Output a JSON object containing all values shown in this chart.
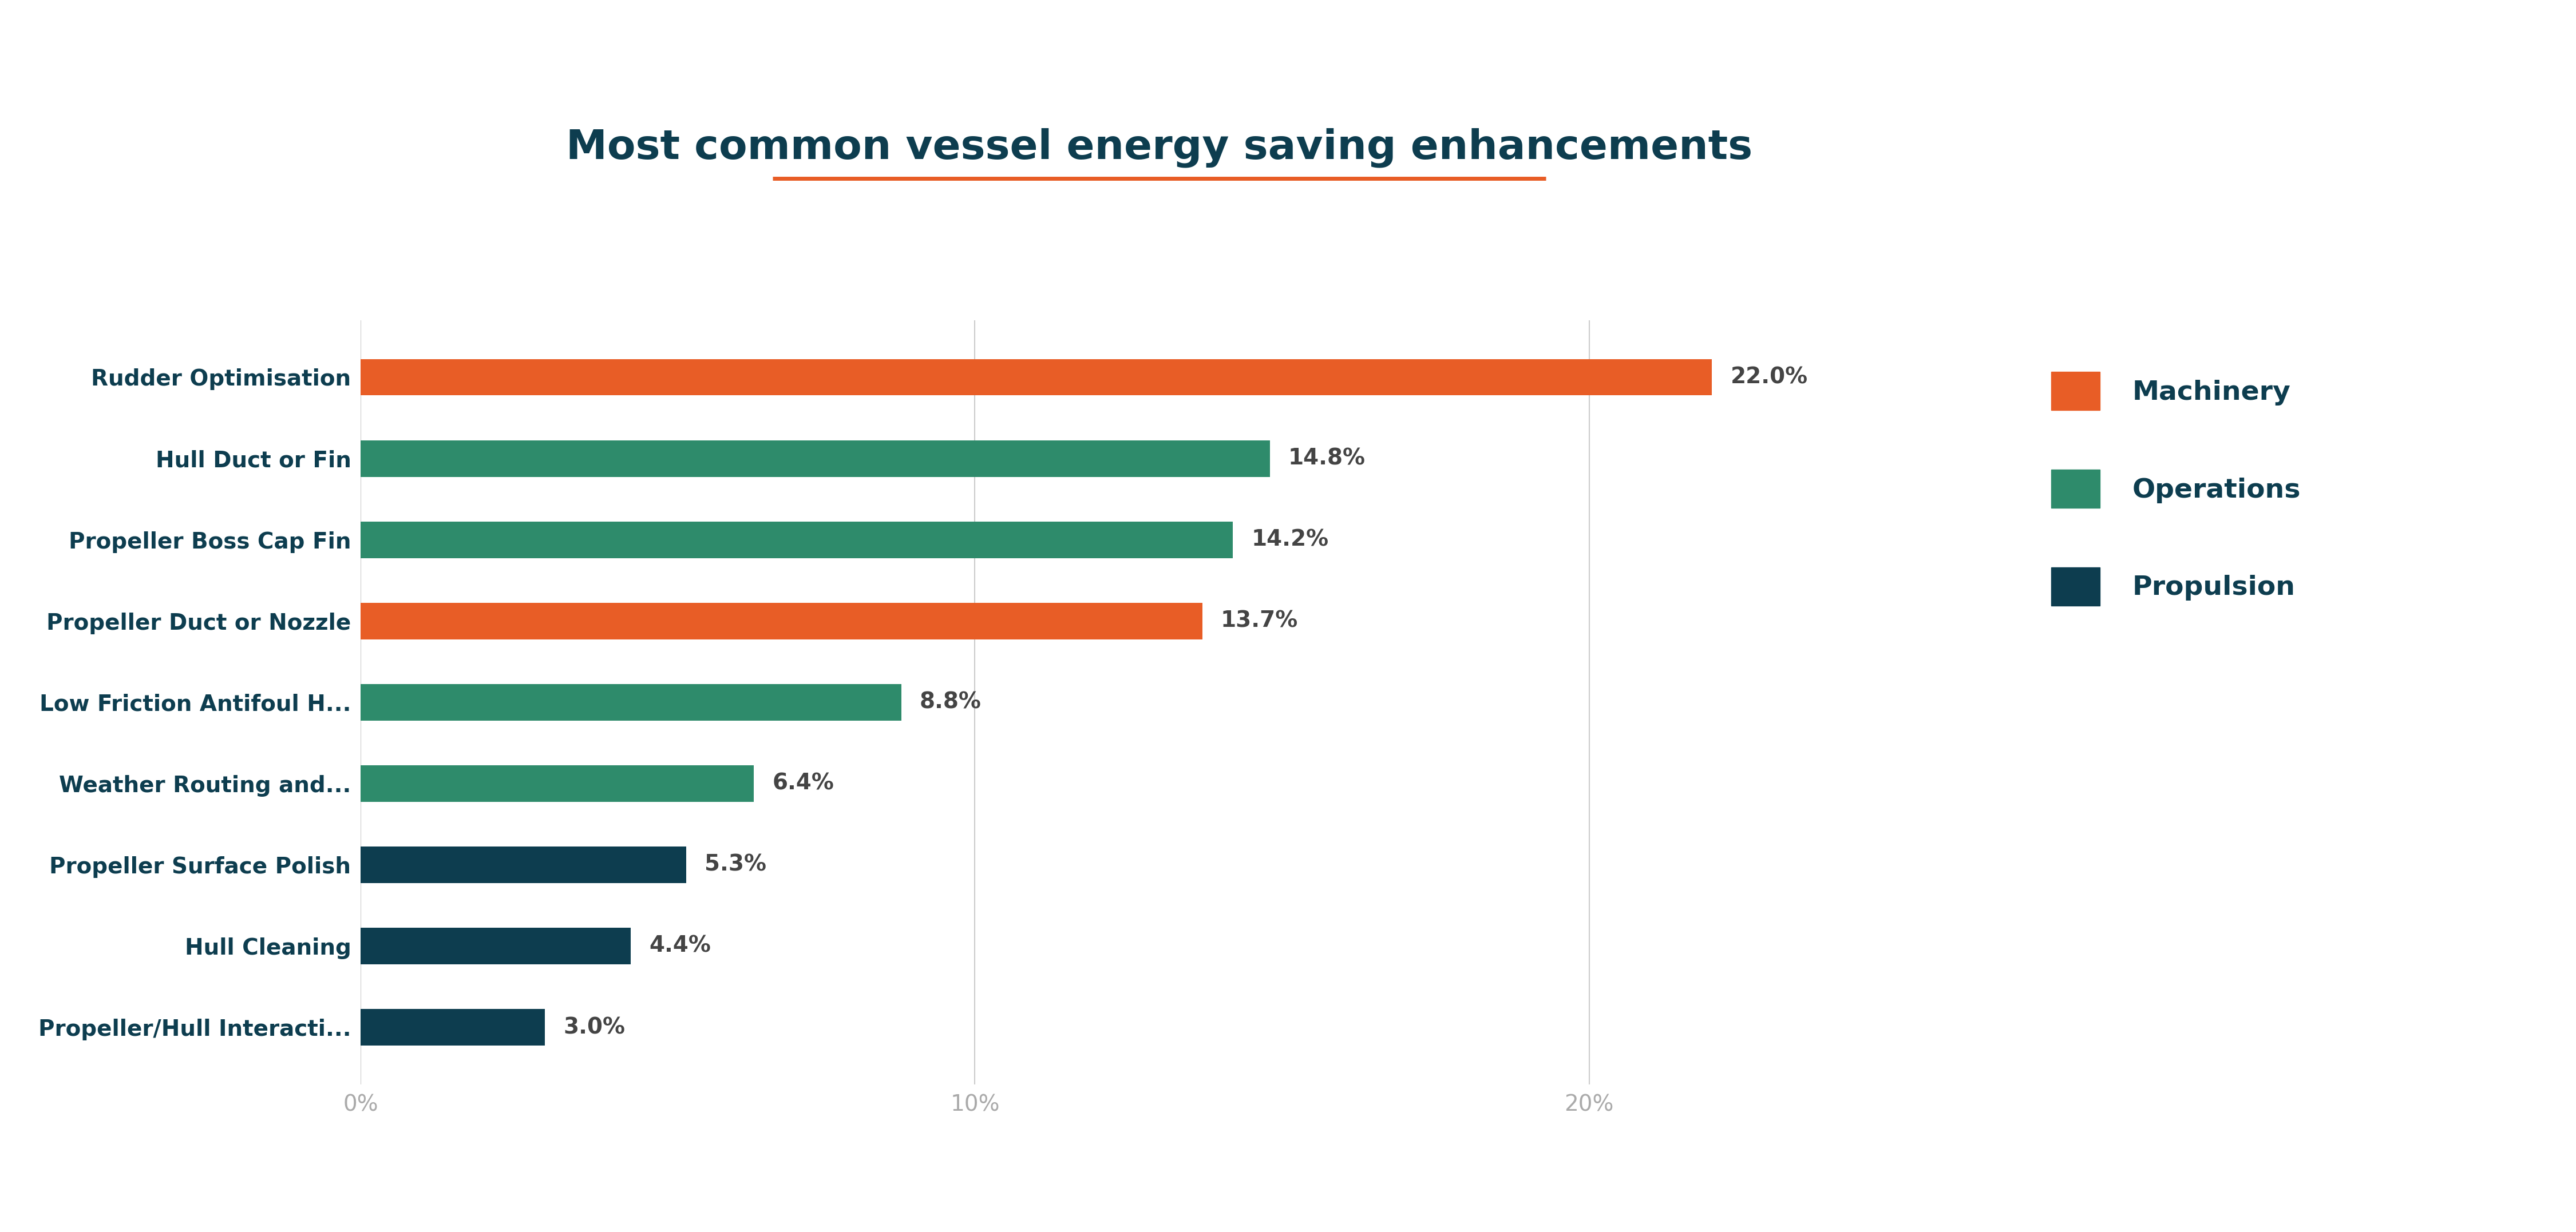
{
  "title": "Most common vessel energy saving enhancements",
  "title_color": "#0d3d4f",
  "title_underline_color": "#e85d26",
  "background_color": "#ffffff",
  "categories": [
    "Propeller/Hull Interacti...",
    "Hull Cleaning",
    "Propeller Surface Polish",
    "Weather Routing and...",
    "Low Friction Antifoul H...",
    "Propeller Duct or Nozzle",
    "Propeller Boss Cap Fin",
    "Hull Duct or Fin",
    "Rudder Optimisation"
  ],
  "values": [
    3.0,
    4.4,
    5.3,
    6.4,
    8.8,
    13.7,
    14.2,
    14.8,
    22.0
  ],
  "bar_colors": [
    "#0d3d4f",
    "#0d3d4f",
    "#0d3d4f",
    "#2e8b6b",
    "#2e8b6b",
    "#e85d26",
    "#2e8b6b",
    "#2e8b6b",
    "#e85d26"
  ],
  "value_labels": [
    "3.0%",
    "4.4%",
    "5.3%",
    "6.4%",
    "8.8%",
    "13.7%",
    "14.2%",
    "14.8%",
    "22.0%"
  ],
  "legend_labels": [
    "Machinery",
    "Operations",
    "Propulsion"
  ],
  "legend_colors": [
    "#e85d26",
    "#2e8b6b",
    "#0d3d4f"
  ],
  "xticks": [
    0,
    10,
    20
  ],
  "xlim": [
    0,
    26
  ],
  "grid_color": "#cccccc",
  "tick_label_color": "#aaaaaa",
  "bar_label_color": "#444444",
  "ylabel_color": "#0d3d4f",
  "bar_height": 0.45
}
